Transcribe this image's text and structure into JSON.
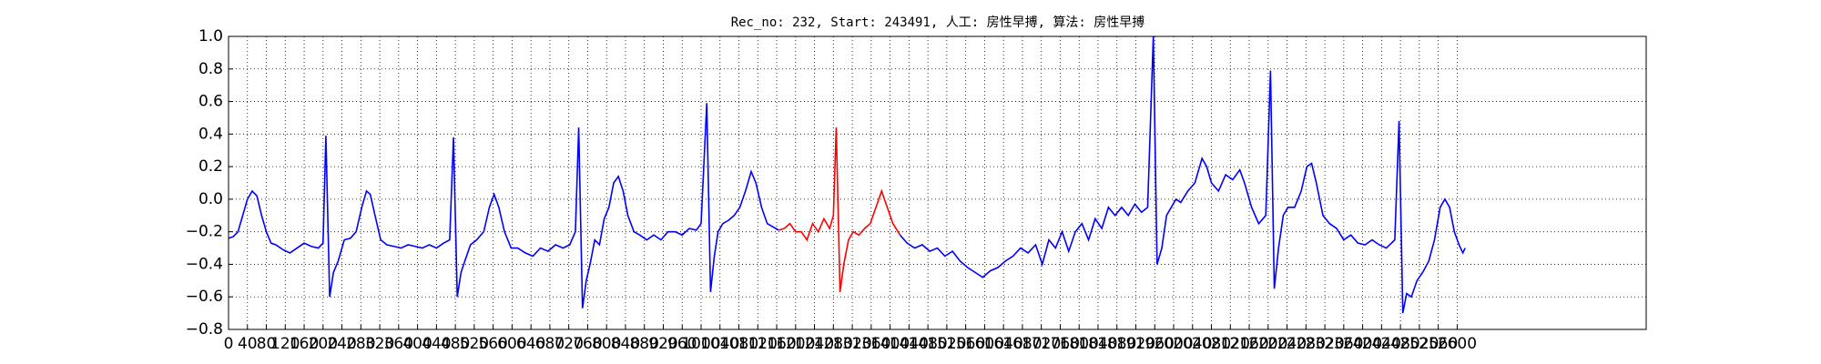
{
  "chart_data": {
    "type": "line",
    "title": "Rec_no: 232, Start: 243491, 人工: 房性早搏, 算法: 房性早搏",
    "xlim": [
      0,
      3000
    ],
    "ylim": [
      -0.8,
      1.0
    ],
    "xticks": [
      0,
      40,
      80,
      120,
      160,
      200,
      240,
      280,
      320,
      360,
      400,
      440,
      480,
      520,
      560,
      600,
      640,
      680,
      720,
      760,
      800,
      840,
      880,
      920,
      960,
      1000,
      1040,
      1080,
      1120,
      1160,
      1200,
      1240,
      1280,
      1320,
      1360,
      1400,
      1440,
      1480,
      1520,
      1560,
      1600,
      1640,
      1680,
      1720,
      1760,
      1800,
      1840,
      1880,
      1920,
      1960,
      2000,
      2040,
      2080,
      2120,
      2160,
      2200,
      2240,
      2280,
      2320,
      2360,
      2400,
      2440,
      2480,
      2520,
      2560,
      2600
    ],
    "yticks": [
      {
        "value": -0.8,
        "label": "−0.8"
      },
      {
        "value": -0.6,
        "label": "−0.6"
      },
      {
        "value": -0.4,
        "label": "−0.4"
      },
      {
        "value": -0.2,
        "label": "−0.2"
      },
      {
        "value": 0,
        "label": "0.0"
      },
      0.2,
      0.4,
      0.6,
      0.8,
      {
        "value": 1,
        "label": "1.0"
      }
    ],
    "grid": true,
    "series": [
      {
        "color": "#0000ff",
        "x": [
          0,
          10,
          20,
          30,
          40,
          50,
          60,
          70,
          80,
          90,
          100,
          115,
          130,
          145,
          160,
          175,
          190,
          200,
          206,
          214,
          222,
          232,
          245,
          258,
          270,
          282,
          292,
          300,
          310,
          322,
          335,
          350,
          365,
          380,
          395,
          410,
          425,
          440,
          455,
          468,
          476,
          484,
          492,
          500,
          512,
          525,
          540,
          552,
          562,
          572,
          584,
          598,
          612,
          628,
          644,
          660,
          676,
          692,
          708,
          722,
          734,
          741,
          749,
          757,
          765,
          775,
          785,
          795,
          805,
          815,
          825,
          835,
          845,
          858,
          870,
          885,
          900,
          915,
          930,
          945,
          960,
          975,
          990,
          1000,
          1012,
          1020,
          1028,
          1036,
          1046,
          1058,
          1070,
          1082,
          1094,
          1106,
          1116,
          1128,
          1140,
          1152,
          1164,
          1286,
          1421,
          1436,
          1452,
          1468,
          1484,
          1500,
          1516,
          1532,
          1548,
          1564,
          1580,
          1596,
          1612,
          1628,
          1644,
          1660,
          1676,
          1692,
          1708,
          1722,
          1736,
          1750,
          1764,
          1778,
          1792,
          1806,
          1820,
          1834,
          1848,
          1862,
          1876,
          1890,
          1904,
          1918,
          1932,
          1945,
          1957,
          1965,
          1975,
          1985,
          1995,
          2005,
          2015,
          2030,
          2045,
          2060,
          2070,
          2080,
          2095,
          2110,
          2125,
          2140,
          2150,
          2165,
          2180,
          2195,
          2205,
          2213,
          2222,
          2232,
          2242,
          2256,
          2270,
          2282,
          2292,
          2302,
          2316,
          2330,
          2345,
          2360,
          2375,
          2390,
          2405,
          2420,
          2435,
          2450,
          2468,
          2477,
          2485,
          2493,
          2503,
          2515,
          2527,
          2540,
          2552,
          2564,
          2574,
          2584,
          2594,
          2604,
          2612,
          2617
        ],
        "values": [
          -0.24,
          -0.23,
          -0.2,
          -0.1,
          0.0,
          0.05,
          0.02,
          -0.1,
          -0.2,
          -0.27,
          -0.28,
          -0.31,
          -0.33,
          -0.3,
          -0.27,
          -0.29,
          -0.3,
          -0.27,
          0.39,
          -0.6,
          -0.45,
          -0.38,
          -0.25,
          -0.24,
          -0.2,
          -0.05,
          0.05,
          0.03,
          -0.1,
          -0.25,
          -0.28,
          -0.29,
          -0.3,
          -0.28,
          -0.29,
          -0.3,
          -0.28,
          -0.3,
          -0.27,
          -0.25,
          0.38,
          -0.6,
          -0.45,
          -0.38,
          -0.28,
          -0.25,
          -0.2,
          -0.05,
          0.03,
          -0.05,
          -0.2,
          -0.3,
          -0.3,
          -0.33,
          -0.35,
          -0.3,
          -0.32,
          -0.28,
          -0.3,
          -0.28,
          -0.2,
          0.44,
          -0.67,
          -0.5,
          -0.4,
          -0.25,
          -0.28,
          -0.12,
          -0.05,
          0.1,
          0.14,
          0.05,
          -0.1,
          -0.2,
          -0.22,
          -0.25,
          -0.22,
          -0.25,
          -0.2,
          -0.2,
          -0.22,
          -0.18,
          -0.19,
          -0.15,
          0.59,
          -0.57,
          -0.35,
          -0.2,
          -0.15,
          -0.13,
          -0.1,
          -0.05,
          0.05,
          0.17,
          0.1,
          -0.05,
          -0.15,
          -0.17,
          -0.19,
          null,
          -0.22,
          -0.27,
          -0.3,
          -0.28,
          -0.32,
          -0.3,
          -0.35,
          -0.32,
          -0.38,
          -0.42,
          -0.45,
          -0.48,
          -0.44,
          -0.42,
          -0.38,
          -0.35,
          -0.3,
          -0.33,
          -0.28,
          -0.4,
          -0.25,
          -0.3,
          -0.2,
          -0.32,
          -0.2,
          -0.15,
          -0.25,
          -0.12,
          -0.18,
          -0.05,
          -0.1,
          -0.05,
          -0.1,
          -0.03,
          -0.08,
          -0.05,
          1.0,
          -0.4,
          -0.3,
          -0.1,
          -0.05,
          0.0,
          -0.02,
          0.05,
          0.1,
          0.25,
          0.2,
          0.1,
          0.05,
          0.15,
          0.12,
          0.18,
          0.1,
          -0.05,
          -0.15,
          -0.1,
          0.79,
          -0.55,
          -0.3,
          -0.1,
          -0.05,
          -0.05,
          0.05,
          0.2,
          0.22,
          0.1,
          -0.1,
          -0.15,
          -0.18,
          -0.25,
          -0.22,
          -0.27,
          -0.28,
          -0.25,
          -0.28,
          -0.3,
          -0.25,
          0.48,
          -0.7,
          -0.58,
          -0.6,
          -0.5,
          -0.45,
          -0.38,
          -0.25,
          -0.05,
          0.0,
          -0.05,
          -0.2,
          -0.28,
          -0.33,
          -0.3
        ]
      },
      {
        "color": "#ff0000",
        "x": [
          1164,
          1176,
          1188,
          1200,
          1212,
          1224,
          1236,
          1248,
          1260,
          1272,
          1280,
          1286,
          1294,
          1302,
          1312,
          1322,
          1334,
          1346,
          1358,
          1370,
          1382,
          1394,
          1406,
          1421
        ],
        "values": [
          -0.19,
          -0.18,
          -0.15,
          -0.2,
          -0.2,
          -0.25,
          -0.15,
          -0.2,
          -0.12,
          -0.18,
          -0.1,
          0.44,
          -0.57,
          -0.4,
          -0.25,
          -0.2,
          -0.22,
          -0.18,
          -0.15,
          -0.05,
          0.05,
          -0.05,
          -0.15,
          -0.22
        ]
      }
    ]
  }
}
